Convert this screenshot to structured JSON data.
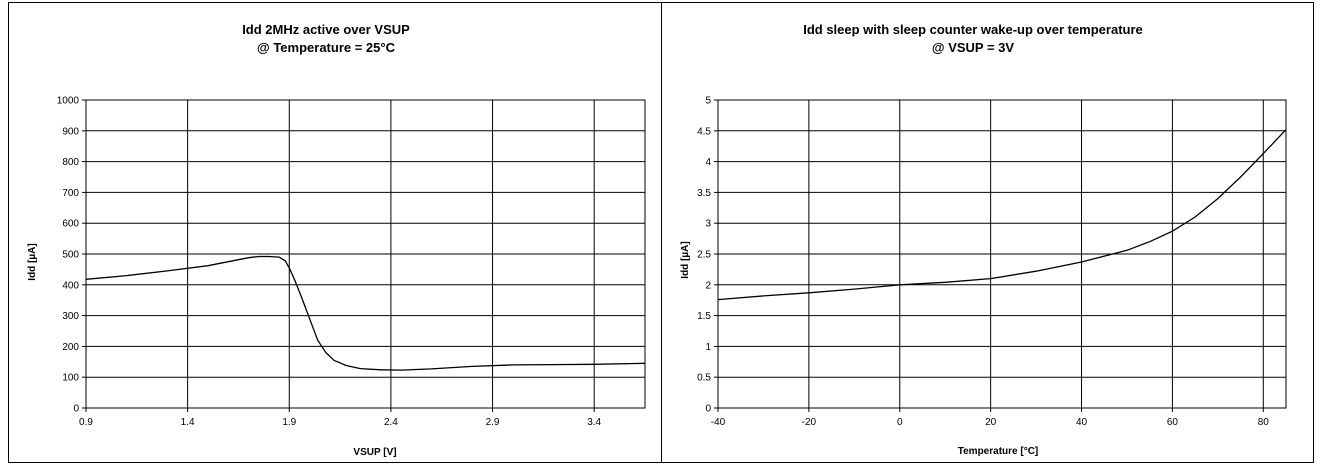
{
  "chart_data": [
    {
      "type": "line",
      "title": "Idd 2MHz active over VSUP",
      "subtitle": "@ Temperature = 25°C",
      "xlabel": "VSUP [V]",
      "ylabel": "Idd [µA]",
      "xlim": [
        0.9,
        3.65
      ],
      "ylim": [
        0,
        1000
      ],
      "xticks": [
        0.9,
        1.4,
        1.9,
        2.4,
        2.9,
        3.4
      ],
      "xtick_labels": [
        "0.9",
        "1.4",
        "1.9",
        "2.4",
        "2.9",
        "3.4"
      ],
      "yticks": [
        0,
        100,
        200,
        300,
        400,
        500,
        600,
        700,
        800,
        900,
        1000
      ],
      "ytick_labels": [
        "0",
        "100",
        "200",
        "300",
        "400",
        "500",
        "600",
        "700",
        "800",
        "900",
        "1000"
      ],
      "grid": true,
      "series": [
        {
          "x": [
            0.9,
            1.1,
            1.3,
            1.5,
            1.6,
            1.7,
            1.75,
            1.8,
            1.85,
            1.88,
            1.9,
            1.93,
            1.96,
            2.0,
            2.04,
            2.08,
            2.12,
            2.18,
            2.25,
            2.35,
            2.45,
            2.6,
            2.8,
            3.0,
            3.2,
            3.4,
            3.65
          ],
          "y": [
            418,
            430,
            445,
            462,
            475,
            488,
            492,
            492,
            490,
            478,
            455,
            410,
            360,
            290,
            220,
            180,
            155,
            138,
            128,
            124,
            123,
            127,
            135,
            140,
            141,
            142,
            145
          ]
        }
      ]
    },
    {
      "type": "line",
      "title": "Idd sleep with sleep counter wake-up over temperature",
      "subtitle": "@ VSUP = 3V",
      "xlabel": "Temperature [°C]",
      "ylabel": "Idd [µA]",
      "xlim": [
        -40,
        85
      ],
      "ylim": [
        0,
        5
      ],
      "xticks": [
        -40,
        -20,
        0,
        20,
        40,
        60,
        80
      ],
      "xtick_labels": [
        "-40",
        "-20",
        "0",
        "20",
        "40",
        "60",
        "80"
      ],
      "yticks": [
        0,
        0.5,
        1,
        1.5,
        2,
        2.5,
        3,
        3.5,
        4,
        4.5,
        5
      ],
      "ytick_labels": [
        "0",
        "0.5",
        "1",
        "1.5",
        "2",
        "2.5",
        "3",
        "3.5",
        "4",
        "4.5",
        "5"
      ],
      "grid": true,
      "series": [
        {
          "x": [
            -40,
            -30,
            -20,
            -10,
            0,
            10,
            20,
            30,
            40,
            50,
            55,
            60,
            65,
            70,
            75,
            80,
            85
          ],
          "y": [
            1.76,
            1.82,
            1.87,
            1.93,
            2.0,
            2.04,
            2.1,
            2.22,
            2.37,
            2.56,
            2.7,
            2.87,
            3.1,
            3.4,
            3.75,
            4.13,
            4.52
          ]
        }
      ]
    }
  ]
}
